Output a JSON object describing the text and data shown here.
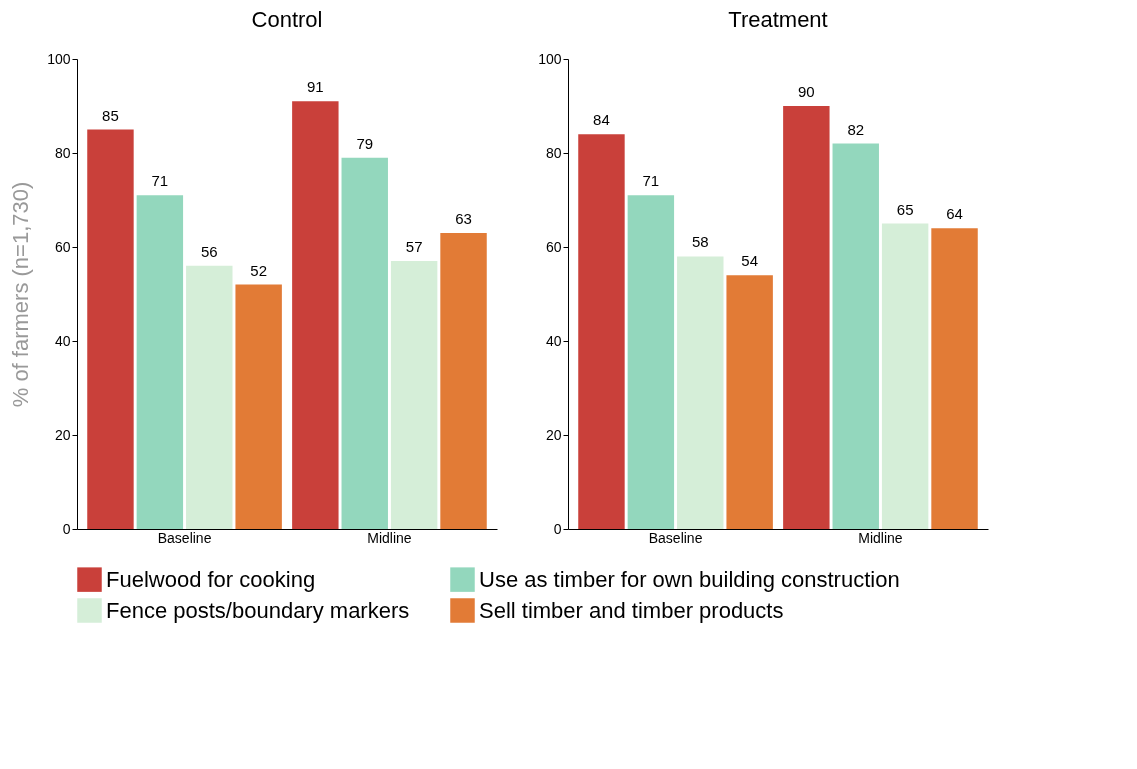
{
  "chart_data": [
    {
      "type": "bar",
      "title": "Control",
      "ylabel": "% of farmers (n=1,730)",
      "categories": [
        "Baseline",
        "Midline"
      ],
      "series": [
        {
          "name": "Fuelwood for cooking",
          "color": "#c9403a",
          "values": [
            85,
            91
          ]
        },
        {
          "name": "Use as timber for own building construction",
          "color": "#93d7bd",
          "values": [
            71,
            79
          ]
        },
        {
          "name": "Fence posts/boundary markers",
          "color": "#d5eed8",
          "values": [
            56,
            57
          ]
        },
        {
          "name": "Sell timber and timber products",
          "color": "#e27b36",
          "values": [
            52,
            63
          ]
        }
      ],
      "ylim": [
        0,
        100
      ],
      "yticks": [
        0,
        20,
        40,
        60,
        80,
        100
      ],
      "data_labels": true,
      "legend": "bottom"
    },
    {
      "type": "bar",
      "title": "Treatment",
      "categories": [
        "Baseline",
        "Midline"
      ],
      "series": [
        {
          "name": "Fuelwood for cooking",
          "color": "#c9403a",
          "values": [
            84,
            90
          ]
        },
        {
          "name": "Use as timber for own building construction",
          "color": "#93d7bd",
          "values": [
            71,
            82
          ]
        },
        {
          "name": "Fence posts/boundary markers",
          "color": "#d5eed8",
          "values": [
            58,
            65
          ]
        },
        {
          "name": "Sell timber and timber products",
          "color": "#e27b36",
          "values": [
            54,
            64
          ]
        }
      ],
      "ylim": [
        0,
        100
      ],
      "yticks": [
        0,
        20,
        40,
        60,
        80,
        100
      ],
      "data_labels": true
    }
  ]
}
